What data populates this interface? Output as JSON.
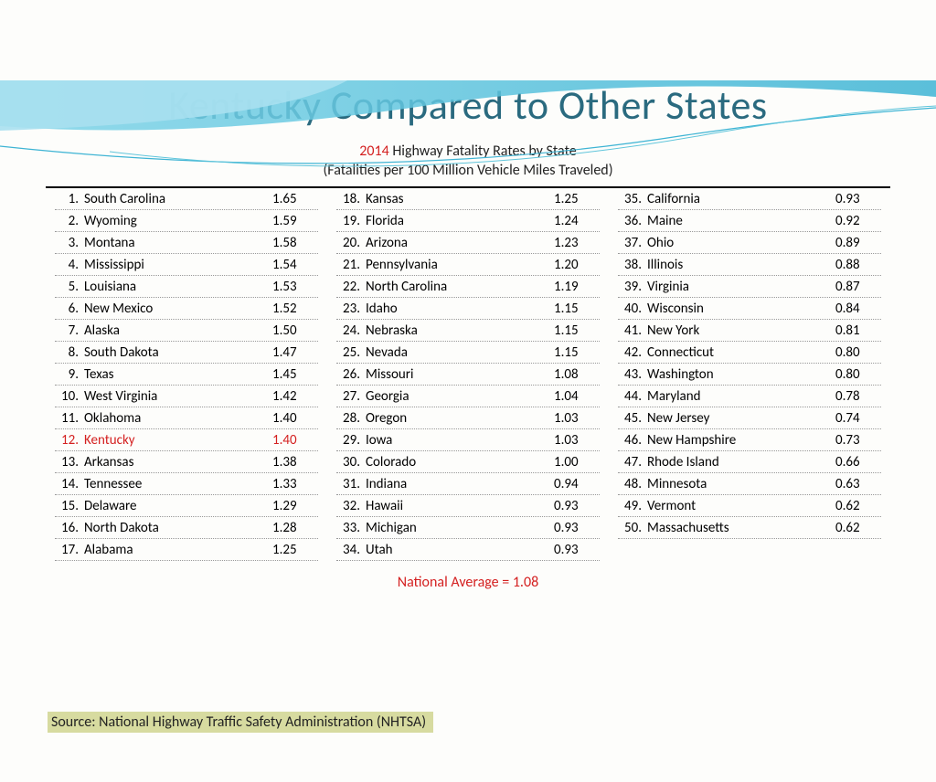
{
  "title": "Kentucky Compared to Other States",
  "year": "2014",
  "subtitle_line1": " Highway Fatality Rates by State",
  "subtitle_line2": "(Fatalities per 100 Million Vehicle Miles Traveled)",
  "national_avg": "National Average = 1.08",
  "source": "Source:  National Highway Traffic Safety Administration (NHTSA)",
  "colors": {
    "title": "#2a6a7f",
    "highlight": "#d42020",
    "source_bg": "#d7dba0",
    "swoosh_light": "#a8e0ef",
    "swoosh_dark": "#3eb4d4"
  },
  "highlight_rank": 12,
  "states": [
    {
      "rank": 1,
      "name": "South Carolina",
      "rate": "1.65"
    },
    {
      "rank": 2,
      "name": "Wyoming",
      "rate": "1.59"
    },
    {
      "rank": 3,
      "name": "Montana",
      "rate": "1.58"
    },
    {
      "rank": 4,
      "name": "Mississippi",
      "rate": "1.54"
    },
    {
      "rank": 5,
      "name": "Louisiana",
      "rate": "1.53"
    },
    {
      "rank": 6,
      "name": "New Mexico",
      "rate": "1.52"
    },
    {
      "rank": 7,
      "name": "Alaska",
      "rate": "1.50"
    },
    {
      "rank": 8,
      "name": "South Dakota",
      "rate": "1.47"
    },
    {
      "rank": 9,
      "name": "Texas",
      "rate": "1.45"
    },
    {
      "rank": 10,
      "name": "West Virginia",
      "rate": "1.42"
    },
    {
      "rank": 11,
      "name": "Oklahoma",
      "rate": "1.40"
    },
    {
      "rank": 12,
      "name": "Kentucky",
      "rate": "1.40"
    },
    {
      "rank": 13,
      "name": "Arkansas",
      "rate": "1.38"
    },
    {
      "rank": 14,
      "name": "Tennessee",
      "rate": "1.33"
    },
    {
      "rank": 15,
      "name": "Delaware",
      "rate": "1.29"
    },
    {
      "rank": 16,
      "name": "North Dakota",
      "rate": "1.28"
    },
    {
      "rank": 17,
      "name": "Alabama",
      "rate": "1.25"
    },
    {
      "rank": 18,
      "name": "Kansas",
      "rate": "1.25"
    },
    {
      "rank": 19,
      "name": "Florida",
      "rate": "1.24"
    },
    {
      "rank": 20,
      "name": "Arizona",
      "rate": "1.23"
    },
    {
      "rank": 21,
      "name": "Pennsylvania",
      "rate": "1.20"
    },
    {
      "rank": 22,
      "name": "North Carolina",
      "rate": "1.19"
    },
    {
      "rank": 23,
      "name": "Idaho",
      "rate": "1.15"
    },
    {
      "rank": 24,
      "name": "Nebraska",
      "rate": "1.15"
    },
    {
      "rank": 25,
      "name": "Nevada",
      "rate": "1.15"
    },
    {
      "rank": 26,
      "name": "Missouri",
      "rate": "1.08"
    },
    {
      "rank": 27,
      "name": "Georgia",
      "rate": "1.04"
    },
    {
      "rank": 28,
      "name": "Oregon",
      "rate": "1.03"
    },
    {
      "rank": 29,
      "name": "Iowa",
      "rate": "1.03"
    },
    {
      "rank": 30,
      "name": "Colorado",
      "rate": "1.00"
    },
    {
      "rank": 31,
      "name": "Indiana",
      "rate": "0.94"
    },
    {
      "rank": 32,
      "name": "Hawaii",
      "rate": "0.93"
    },
    {
      "rank": 33,
      "name": "Michigan",
      "rate": "0.93"
    },
    {
      "rank": 34,
      "name": "Utah",
      "rate": "0.93"
    },
    {
      "rank": 35,
      "name": "California",
      "rate": "0.93"
    },
    {
      "rank": 36,
      "name": "Maine",
      "rate": "0.92"
    },
    {
      "rank": 37,
      "name": "Ohio",
      "rate": "0.89"
    },
    {
      "rank": 38,
      "name": "Illinois",
      "rate": "0.88"
    },
    {
      "rank": 39,
      "name": "Virginia",
      "rate": "0.87"
    },
    {
      "rank": 40,
      "name": "Wisconsin",
      "rate": "0.84"
    },
    {
      "rank": 41,
      "name": "New York",
      "rate": "0.81"
    },
    {
      "rank": 42,
      "name": "Connecticut",
      "rate": "0.80"
    },
    {
      "rank": 43,
      "name": "Washington",
      "rate": "0.80"
    },
    {
      "rank": 44,
      "name": "Maryland",
      "rate": "0.78"
    },
    {
      "rank": 45,
      "name": "New Jersey",
      "rate": "0.74"
    },
    {
      "rank": 46,
      "name": "New Hampshire",
      "rate": "0.73"
    },
    {
      "rank": 47,
      "name": "Rhode Island",
      "rate": "0.66"
    },
    {
      "rank": 48,
      "name": "Minnesota",
      "rate": "0.63"
    },
    {
      "rank": 49,
      "name": "Vermont",
      "rate": "0.62"
    },
    {
      "rank": 50,
      "name": "Massachusetts",
      "rate": "0.62"
    }
  ]
}
